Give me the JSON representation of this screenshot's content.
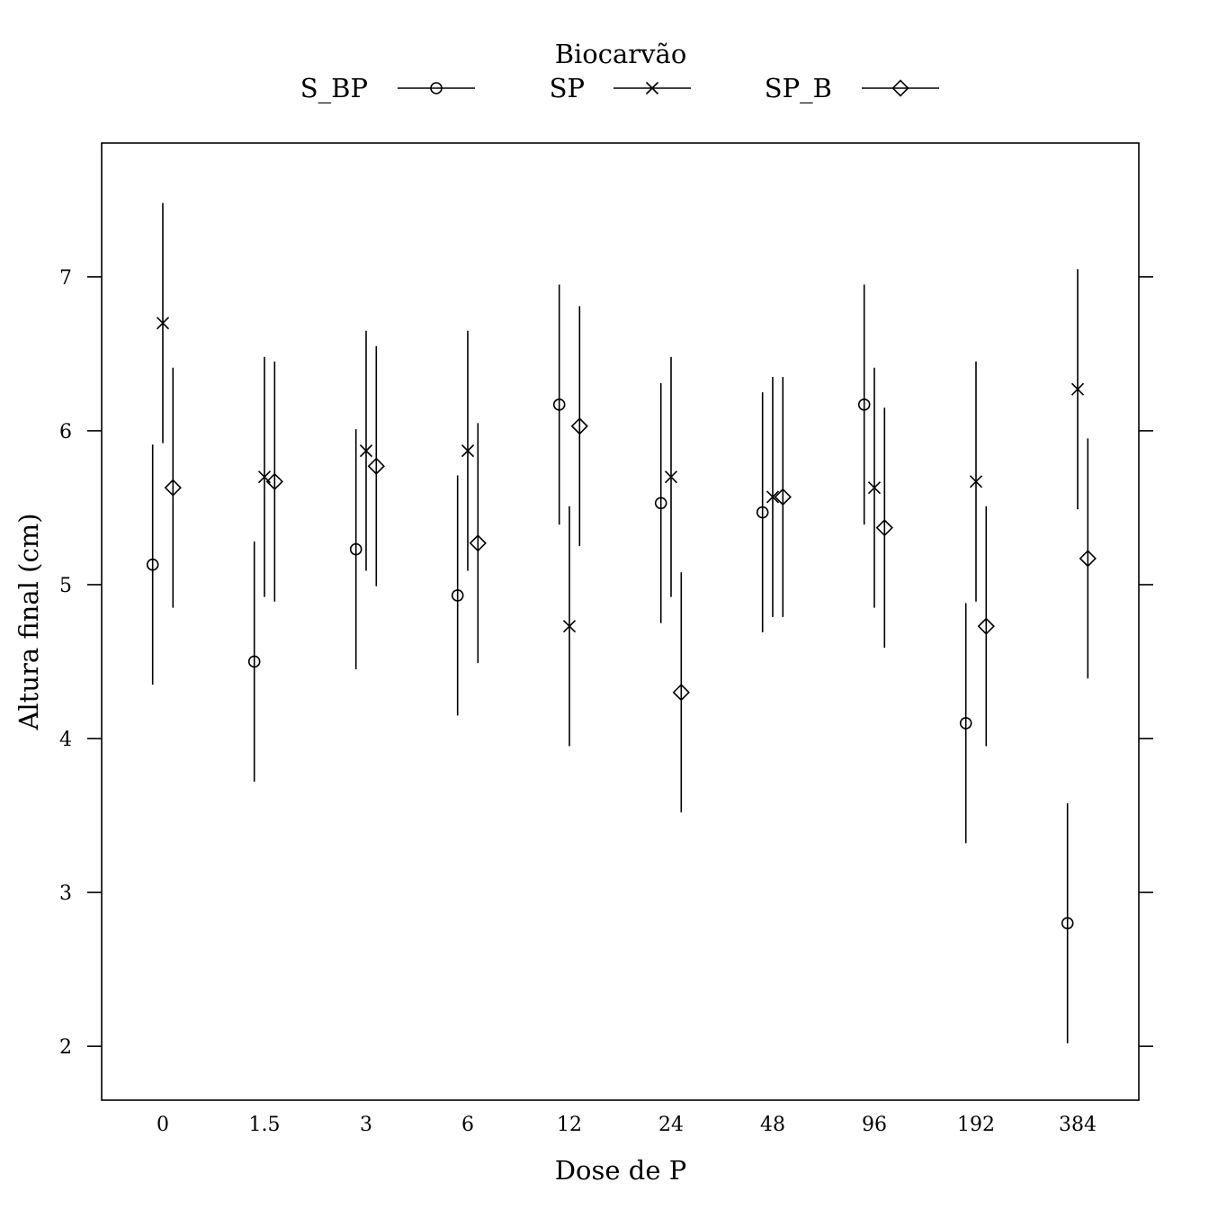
{
  "chart_data": {
    "type": "scatter",
    "xlabel": "Dose de P",
    "ylabel": "Altura final (cm)",
    "categories": [
      "0",
      "1.5",
      "3",
      "6",
      "12",
      "24",
      "48",
      "96",
      "192",
      "384"
    ],
    "ylim": [
      1.65,
      7.87
    ],
    "yticks": [
      2,
      3,
      4,
      5,
      6,
      7
    ],
    "grid": false,
    "legend": {
      "title": "Biocarvão",
      "position": "top",
      "layout": "horizontal"
    },
    "series": [
      {
        "name": "S_BP",
        "marker": "circle",
        "values": [
          5.13,
          4.5,
          5.23,
          4.93,
          6.17,
          5.53,
          5.47,
          6.17,
          4.1,
          2.8
        ],
        "lower": [
          4.35,
          3.72,
          4.45,
          4.15,
          5.39,
          4.75,
          4.69,
          5.39,
          3.32,
          2.02
        ],
        "upper": [
          5.91,
          5.28,
          6.01,
          5.71,
          6.95,
          6.31,
          6.25,
          6.95,
          4.88,
          3.58
        ]
      },
      {
        "name": "SP",
        "marker": "cross",
        "values": [
          6.7,
          5.7,
          5.87,
          5.87,
          4.73,
          5.7,
          5.57,
          5.63,
          5.67,
          6.27
        ],
        "lower": [
          5.92,
          4.92,
          5.09,
          5.09,
          3.95,
          4.92,
          4.79,
          4.85,
          4.89,
          5.49
        ],
        "upper": [
          7.48,
          6.48,
          6.65,
          6.65,
          5.51,
          6.48,
          6.35,
          6.41,
          6.45,
          7.05
        ]
      },
      {
        "name": "SP_B",
        "marker": "diamond",
        "values": [
          5.63,
          5.67,
          5.77,
          5.27,
          6.03,
          4.3,
          5.57,
          5.37,
          4.73,
          5.17
        ],
        "lower": [
          4.85,
          4.89,
          4.99,
          4.49,
          5.25,
          3.52,
          4.79,
          4.59,
          3.95,
          4.39
        ],
        "upper": [
          6.41,
          6.45,
          6.55,
          6.05,
          6.81,
          5.08,
          6.35,
          6.15,
          5.51,
          5.95
        ]
      }
    ]
  }
}
